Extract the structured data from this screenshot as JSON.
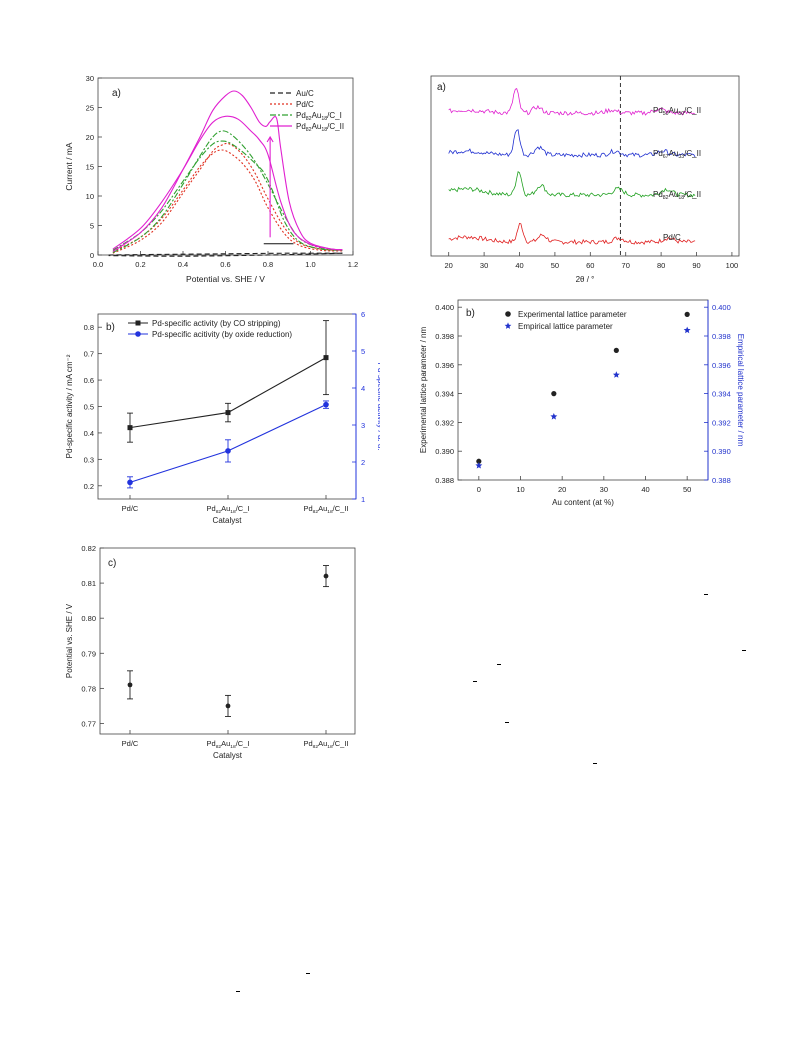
{
  "chart_data": [
    {
      "id": "cv",
      "type": "line",
      "panel_label": "a)",
      "xlabel": "Potential vs. SHE / V",
      "ylabel": "Current / mA",
      "xlim": [
        0.0,
        1.2
      ],
      "ylim": [
        0,
        30
      ],
      "xticks": [
        0.0,
        0.2,
        0.4,
        0.6,
        0.8,
        1.0,
        1.2
      ],
      "xtick_labels": [
        "0.0",
        "0.2",
        "0.4",
        "0.6",
        "0.8",
        "1.0",
        "1.2"
      ],
      "yticks": [
        0,
        5,
        10,
        15,
        20,
        25,
        30
      ],
      "ytick_labels": [
        "0",
        "5",
        "10",
        "15",
        "20",
        "25",
        "30"
      ],
      "legend_position": "top-right",
      "series": [
        {
          "name": "Au/C",
          "color": "#222222",
          "dash": "dashed",
          "sub": "",
          "curves": [
            [
              [
                0.05,
                0.0
              ],
              [
                0.3,
                0.1
              ],
              [
                0.6,
                0.2
              ],
              [
                0.9,
                0.3
              ],
              [
                1.15,
                0.3
              ]
            ],
            [
              [
                1.15,
                0.3
              ],
              [
                0.8,
                0.0
              ],
              [
                0.4,
                -0.2
              ],
              [
                0.05,
                -0.1
              ]
            ]
          ]
        },
        {
          "name": "Pd/C",
          "color": "#e03020",
          "dash": "dotted",
          "sub": "",
          "curves": [
            [
              [
                0.07,
                0.6
              ],
              [
                0.2,
                3.0
              ],
              [
                0.3,
                6.2
              ],
              [
                0.4,
                11.0
              ],
              [
                0.48,
                15.0
              ],
              [
                0.54,
                17.2
              ],
              [
                0.58,
                17.8
              ],
              [
                0.62,
                17.3
              ],
              [
                0.68,
                15.5
              ],
              [
                0.74,
                12.5
              ],
              [
                0.8,
                8.0
              ],
              [
                0.88,
                3.5
              ],
              [
                0.95,
                1.6
              ],
              [
                1.05,
                0.8
              ],
              [
                1.15,
                0.7
              ]
            ],
            [
              [
                0.07,
                0.3
              ],
              [
                0.2,
                2.5
              ],
              [
                0.3,
                5.5
              ],
              [
                0.4,
                10.5
              ],
              [
                0.48,
                14.5
              ],
              [
                0.54,
                17.6
              ],
              [
                0.58,
                18.6
              ],
              [
                0.62,
                18.8
              ],
              [
                0.68,
                17.0
              ],
              [
                0.74,
                13.8
              ],
              [
                0.8,
                9.5
              ],
              [
                0.88,
                4.5
              ],
              [
                0.95,
                2.0
              ],
              [
                1.05,
                1.0
              ],
              [
                1.15,
                0.8
              ]
            ]
          ]
        },
        {
          "name": "Pd82Au18/C_I",
          "color": "#30a030",
          "dash": "dashdot",
          "sub": "PdAu",
          "curves": [
            [
              [
                0.07,
                0.8
              ],
              [
                0.2,
                3.8
              ],
              [
                0.3,
                7.5
              ],
              [
                0.4,
                12.5
              ],
              [
                0.48,
                16.5
              ],
              [
                0.54,
                18.8
              ],
              [
                0.58,
                19.3
              ],
              [
                0.62,
                19.0
              ],
              [
                0.68,
                17.5
              ],
              [
                0.74,
                15.5
              ],
              [
                0.78,
                14.0
              ],
              [
                0.82,
                11.0
              ],
              [
                0.88,
                5.5
              ],
              [
                0.95,
                2.2
              ],
              [
                1.05,
                1.0
              ],
              [
                1.15,
                0.8
              ]
            ],
            [
              [
                0.07,
                0.4
              ],
              [
                0.2,
                3.0
              ],
              [
                0.3,
                6.5
              ],
              [
                0.4,
                12.0
              ],
              [
                0.48,
                16.8
              ],
              [
                0.54,
                20.0
              ],
              [
                0.58,
                21.0
              ],
              [
                0.62,
                20.6
              ],
              [
                0.68,
                18.6
              ],
              [
                0.74,
                15.8
              ],
              [
                0.8,
                12.0
              ],
              [
                0.88,
                6.5
              ],
              [
                0.95,
                2.8
              ],
              [
                1.05,
                1.2
              ],
              [
                1.15,
                0.9
              ]
            ]
          ]
        },
        {
          "name": "Pd82Au18/C_II",
          "color": "#e020d0",
          "dash": "solid",
          "sub": "PdAu",
          "curves": [
            [
              [
                0.07,
                1.0
              ],
              [
                0.2,
                4.5
              ],
              [
                0.3,
                9.0
              ],
              [
                0.4,
                14.5
              ],
              [
                0.48,
                19.5
              ],
              [
                0.54,
                22.5
              ],
              [
                0.6,
                23.5
              ],
              [
                0.66,
                23.0
              ],
              [
                0.72,
                21.0
              ],
              [
                0.76,
                19.5
              ],
              [
                0.8,
                17.0
              ],
              [
                0.86,
                9.0
              ],
              [
                0.92,
                4.0
              ],
              [
                1.0,
                1.8
              ],
              [
                1.1,
                1.0
              ],
              [
                1.15,
                0.9
              ]
            ],
            [
              [
                0.07,
                0.6
              ],
              [
                0.2,
                3.8
              ],
              [
                0.3,
                8.0
              ],
              [
                0.4,
                14.5
              ],
              [
                0.48,
                20.0
              ],
              [
                0.54,
                24.5
              ],
              [
                0.6,
                27.0
              ],
              [
                0.64,
                27.8
              ],
              [
                0.68,
                27.0
              ],
              [
                0.72,
                25.0
              ],
              [
                0.76,
                22.5
              ],
              [
                0.79,
                21.8
              ],
              [
                0.81,
                22.6
              ],
              [
                0.84,
                23.2
              ],
              [
                0.86,
                18.0
              ],
              [
                0.9,
                9.0
              ],
              [
                0.95,
                4.0
              ],
              [
                1.0,
                2.0
              ],
              [
                1.1,
                1.0
              ],
              [
                1.15,
                0.9
              ]
            ]
          ]
        }
      ],
      "annotations": [
        {
          "kind": "scan-arrow",
          "x": 0.81,
          "y_from": 3.0,
          "y_to": 20.0
        },
        {
          "kind": "baseline",
          "x_from": 0.78,
          "x_to": 0.92,
          "y": 1.9
        }
      ]
    },
    {
      "id": "xrd",
      "type": "line",
      "panel_label": "a)",
      "xlabel": "2θ / °",
      "ylabel": "",
      "xlim": [
        15,
        102
      ],
      "xticks": [
        20,
        30,
        40,
        50,
        60,
        70,
        80,
        90,
        100
      ],
      "xtick_labels": [
        "20",
        "30",
        "40",
        "50",
        "60",
        "70",
        "80",
        "90",
        "100"
      ],
      "reference_line_x": 68.5,
      "series": [
        {
          "name": "Pd/C",
          "color": "#e02020",
          "offset": 0,
          "peaks": [
            [
              25,
              2.5,
              5
            ],
            [
              40.2,
              9,
              0.8
            ],
            [
              46.5,
              3.5,
              1.2
            ],
            [
              68,
              2,
              1.5
            ],
            [
              82,
              2,
              1.5
            ]
          ]
        },
        {
          "name": "Pd82Au18/C_II",
          "color": "#20a020",
          "offset": 1,
          "peaks": [
            [
              25,
              3,
              5
            ],
            [
              39.8,
              12,
              0.8
            ],
            [
              46,
              5,
              1.2
            ],
            [
              67.8,
              3,
              1.5
            ],
            [
              81.5,
              3,
              1.5
            ]
          ]
        },
        {
          "name": "Pd67Au33/C_II",
          "color": "#2030d0",
          "offset": 2,
          "peaks": [
            [
              25,
              2,
              5
            ],
            [
              39.3,
              13,
              0.8
            ],
            [
              45.5,
              4,
              1.2
            ],
            [
              67,
              2,
              1.5
            ],
            [
              80.5,
              2,
              1.5
            ]
          ]
        },
        {
          "name": "Pd50Au50/C_II",
          "color": "#e020d0",
          "offset": 3,
          "peaks": [
            [
              25,
              1.5,
              5
            ],
            [
              39,
              12,
              0.8
            ],
            [
              45,
              3,
              1.2
            ],
            [
              66,
              1.5,
              1.5
            ],
            [
              79.5,
              2,
              1.5
            ]
          ]
        }
      ],
      "labels": [
        {
          "base": "Pd",
          "s1": "50",
          "mid": "Au",
          "s2": "50",
          "tail": "/C_II"
        },
        {
          "base": "Pd",
          "s1": "67",
          "mid": "Au",
          "s2": "33",
          "tail": "/C_II"
        },
        {
          "base": "Pd",
          "s1": "82",
          "mid": "Au",
          "s2": "18",
          "tail": "/C_II"
        },
        {
          "base": "Pd/C",
          "s1": "",
          "mid": "",
          "s2": "",
          "tail": ""
        }
      ]
    },
    {
      "id": "activity",
      "type": "line",
      "panel_label": "b)",
      "xlabel": "Catalyst",
      "ylabel": "Pd-specific activity / mA cm⁻²",
      "y2label": "Pd-specific activity / a. u.",
      "categories": [
        "Pd/C",
        "Pd82Au18/C_I",
        "Pd82Au18/C_II"
      ],
      "ylim": [
        0.15,
        0.85
      ],
      "y2lim": [
        1.0,
        6.0
      ],
      "yticks": [
        0.2,
        0.3,
        0.4,
        0.5,
        0.6,
        0.7,
        0.8
      ],
      "ytick_labels": [
        "0.2",
        "0.3",
        "0.4",
        "0.5",
        "0.6",
        "0.7",
        "0.8"
      ],
      "y2ticks": [
        1,
        2,
        3,
        4,
        5,
        6
      ],
      "y2tick_labels": [
        "1",
        "2",
        "3",
        "4",
        "5",
        "6"
      ],
      "legend_position": "top-left",
      "series": [
        {
          "name": "Pd-specific activity (by CO stripping)",
          "color": "#222222",
          "axis": "left",
          "values": [
            0.42,
            0.477,
            0.685
          ],
          "errors": [
            0.055,
            0.035,
            0.14
          ]
        },
        {
          "name": "Pd-specific acitivity (by oxide reduction)",
          "color": "#2233dd",
          "axis": "right",
          "values": [
            1.45,
            2.3,
            3.55
          ],
          "errors": [
            0.15,
            0.3,
            0.1
          ]
        }
      ]
    },
    {
      "id": "lattice",
      "type": "scatter",
      "panel_label": "b)",
      "xlabel": "Au content (at %)",
      "ylabel": "Experimental lattice parameter / nm",
      "y2label": "Empirical lattice parameter / nm",
      "xlim": [
        -5,
        55
      ],
      "xticks": [
        0,
        10,
        20,
        30,
        40,
        50
      ],
      "xtick_labels": [
        "0",
        "10",
        "20",
        "30",
        "40",
        "50"
      ],
      "ylim": [
        0.388,
        0.4005
      ],
      "yticks": [
        0.388,
        0.39,
        0.392,
        0.394,
        0.396,
        0.398,
        0.4
      ],
      "ytick_labels": [
        "0.388",
        "0.390",
        "0.392",
        "0.394",
        "0.396",
        "0.398",
        "0.400"
      ],
      "y2lim": [
        0.388,
        0.4005
      ],
      "y2ticks": [
        0.388,
        0.39,
        0.392,
        0.394,
        0.396,
        0.398,
        0.4
      ],
      "y2tick_labels": [
        "0.388",
        "0.390",
        "0.392",
        "0.394",
        "0.396",
        "0.398",
        "0.400"
      ],
      "legend_position": "top-left",
      "series": [
        {
          "name": "Experimental lattice parameter",
          "color": "#222222",
          "marker": "circle",
          "x": [
            0,
            18,
            33,
            50
          ],
          "y": [
            0.3893,
            0.394,
            0.397,
            0.3995
          ]
        },
        {
          "name": "Empirical lattice parameter",
          "color": "#2233cc",
          "marker": "star",
          "x": [
            0,
            18,
            33,
            50
          ],
          "y": [
            0.389,
            0.3924,
            0.3953,
            0.3984
          ]
        }
      ]
    },
    {
      "id": "potential",
      "type": "scatter",
      "panel_label": "c)",
      "xlabel": "Catalyst",
      "ylabel": "Potential vs. SHE / V",
      "categories": [
        "Pd/C",
        "Pd82Au18/C_I",
        "Pd82Au18/C_II"
      ],
      "ylim": [
        0.767,
        0.82
      ],
      "yticks": [
        0.77,
        0.78,
        0.79,
        0.8,
        0.81,
        0.82
      ],
      "ytick_labels": [
        "0.77",
        "0.78",
        "0.79",
        "0.80",
        "0.81",
        "0.82"
      ],
      "series": [
        {
          "name": "",
          "color": "#222222",
          "values": [
            0.781,
            0.775,
            0.812
          ],
          "errors": [
            0.004,
            0.003,
            0.003
          ]
        }
      ]
    }
  ],
  "category_labels": {
    "pdc": "Pd/C",
    "alloy_base": "Pd",
    "alloy_s1": "82",
    "alloy_mid": "Au",
    "alloy_s2": "18",
    "alloy_tail_1": "/C_I",
    "alloy_tail_2": "/C_II"
  }
}
